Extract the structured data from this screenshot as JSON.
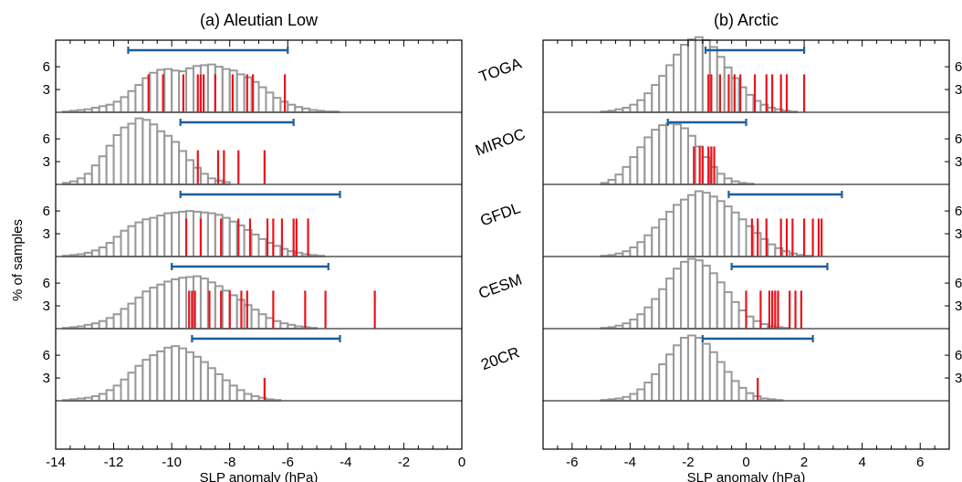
{
  "figure": {
    "ylabel": "% of samples",
    "models": [
      "TOGA",
      "MIROC",
      "GFDL",
      "CESM",
      "20CR"
    ],
    "colors": {
      "histogram": "#999999",
      "members": "#e8141b",
      "range": "#1b5e9c",
      "axis": "#000000"
    }
  },
  "chart_data": [
    {
      "type": "bar",
      "title": "(a) Aleutian Low",
      "xlabel": "SLP anomaly (hPa)",
      "ylabel": "% of samples",
      "xlim": [
        -14,
        0
      ],
      "xticks": [
        "-14",
        "-12",
        "-10",
        "-8",
        "-6",
        "-4",
        "-2",
        "0"
      ],
      "ylim": [
        0,
        9.5
      ],
      "yticks": [
        "6",
        "3"
      ],
      "bin_start": -13.75,
      "bin_width": 0.25,
      "panels": [
        {
          "model": "TOGA",
          "hist": [
            0.1,
            0.2,
            0.3,
            0.4,
            0.6,
            0.8,
            1.0,
            1.4,
            2.0,
            2.8,
            3.6,
            4.5,
            5.2,
            5.6,
            5.7,
            5.5,
            5.4,
            5.8,
            6.1,
            6.2,
            6.3,
            6.0,
            5.7,
            5.5,
            5.0,
            4.6,
            4.0,
            3.3,
            2.6,
            1.9,
            1.4,
            1.0,
            0.7,
            0.5,
            0.3,
            0.2,
            0.1,
            0.1
          ],
          "members": [
            -10.8,
            -10.3,
            -9.6,
            -9.1,
            -9.0,
            -8.9,
            -8.5,
            -7.9,
            -7.4,
            -7.2,
            -6.1
          ],
          "member_values": [
            5,
            5,
            5,
            5,
            5,
            5,
            5,
            5,
            5,
            5,
            5
          ],
          "range": [
            -11.5,
            -6.0
          ]
        },
        {
          "model": "MIROC",
          "hist": [
            0.2,
            0.4,
            0.8,
            1.4,
            2.5,
            3.7,
            5.1,
            6.5,
            7.5,
            8.0,
            8.7,
            8.5,
            7.9,
            7.0,
            6.4,
            5.6,
            4.4,
            3.2,
            2.2,
            1.4,
            0.8,
            0.5,
            0.3
          ],
          "members": [
            -9.1,
            -8.4,
            -8.2,
            -7.7,
            -6.8
          ],
          "member_values": [
            4.5,
            4.5,
            4.5,
            4.5,
            4.5
          ],
          "range": [
            -9.7,
            -5.8
          ]
        },
        {
          "model": "GFDL",
          "hist": [
            0.1,
            0.2,
            0.3,
            0.5,
            0.8,
            1.2,
            1.8,
            2.6,
            3.4,
            4.0,
            4.5,
            4.9,
            5.1,
            5.4,
            5.7,
            5.8,
            5.9,
            6.0,
            5.9,
            5.8,
            5.7,
            5.5,
            5.1,
            4.6,
            4.1,
            3.5,
            2.9,
            2.3,
            1.8,
            1.4,
            1.0,
            0.7,
            0.5,
            0.3,
            0.2,
            0.1
          ],
          "members": [
            -9.5,
            -9.0,
            -8.3,
            -7.7,
            -7.3,
            -6.7,
            -6.5,
            -6.2,
            -5.8,
            -5.7,
            -5.3
          ],
          "member_values": [
            5,
            5,
            5,
            5,
            5,
            5,
            5,
            5,
            5,
            5,
            5
          ],
          "range": [
            -9.7,
            -4.2
          ]
        },
        {
          "model": "CESM",
          "hist": [
            0.1,
            0.2,
            0.3,
            0.5,
            0.7,
            1.0,
            1.4,
            1.9,
            2.6,
            3.3,
            4.1,
            4.9,
            5.4,
            5.8,
            6.2,
            6.5,
            6.7,
            6.8,
            6.9,
            6.6,
            6.1,
            5.6,
            5.0,
            4.4,
            3.8,
            3.1,
            2.5,
            1.9,
            1.4,
            1.0,
            0.7,
            0.5,
            0.3,
            0.2,
            0.1
          ],
          "members": [
            -9.4,
            -9.3,
            -9.2,
            -8.7,
            -8.3,
            -8.0,
            -7.6,
            -7.4,
            -6.5,
            -5.4,
            -4.7,
            -3.0
          ],
          "member_values": [
            5,
            5,
            5,
            5,
            5,
            5,
            5,
            5,
            5,
            5,
            5,
            5
          ],
          "range": [
            -10.0,
            -4.6
          ]
        },
        {
          "model": "20CR",
          "hist": [
            0.1,
            0.2,
            0.3,
            0.4,
            0.6,
            0.9,
            1.4,
            2.0,
            2.8,
            3.7,
            4.6,
            5.4,
            6.0,
            6.5,
            7.0,
            7.2,
            6.9,
            6.4,
            5.8,
            5.1,
            4.3,
            3.5,
            2.7,
            2.0,
            1.4,
            0.9,
            0.6,
            0.4,
            0.2,
            0.1
          ],
          "members": [
            -6.8
          ],
          "member_values": [
            3
          ],
          "range": [
            -9.3,
            -4.2
          ]
        }
      ]
    },
    {
      "type": "bar",
      "title": "(b) Arctic",
      "xlabel": "SLP anomaly (hPa)",
      "ylabel": "% of samples",
      "xlim": [
        -7,
        7
      ],
      "xticks": [
        "-6",
        "-4",
        "-2",
        "0",
        "2",
        "4",
        "6"
      ],
      "ylim": [
        0,
        9.5
      ],
      "yticks": [
        "6",
        "3"
      ],
      "bin_start": -5,
      "bin_width": 0.25,
      "panels": [
        {
          "model": "TOGA",
          "hist": [
            0.1,
            0.2,
            0.4,
            0.6,
            1.0,
            1.6,
            2.5,
            3.6,
            4.8,
            6.2,
            7.6,
            8.9,
            9.6,
            9.9,
            9.5,
            8.6,
            7.3,
            5.9,
            4.5,
            3.3,
            2.3,
            1.5,
            1.0,
            0.6,
            0.4,
            0.2,
            0.1
          ],
          "members": [
            -1.3,
            -1.2,
            -0.9,
            -0.6,
            -0.4,
            -0.2,
            0.3,
            0.7,
            0.9,
            1.2,
            1.4,
            2.0
          ],
          "member_values": [
            5,
            5,
            5,
            5,
            5,
            5,
            5,
            5,
            5,
            5,
            5,
            5
          ],
          "range": [
            -1.4,
            2.0
          ]
        },
        {
          "model": "MIROC",
          "hist": [
            0.2,
            0.6,
            1.3,
            2.3,
            3.6,
            4.9,
            6.2,
            7.2,
            7.8,
            8.0,
            7.9,
            7.4,
            6.4,
            5.0,
            3.6,
            2.3,
            1.4,
            0.8,
            0.4,
            0.2,
            0.1
          ],
          "members": [
            -1.8,
            -1.6,
            -1.5,
            -1.3,
            -1.2,
            -1.1
          ],
          "member_values": [
            5,
            5,
            5,
            5,
            5,
            5
          ],
          "range": [
            -2.7,
            0.0
          ]
        },
        {
          "model": "GFDL",
          "hist": [
            0.1,
            0.2,
            0.4,
            0.7,
            1.2,
            1.9,
            2.8,
            3.8,
            4.9,
            5.9,
            6.8,
            7.5,
            8.1,
            8.6,
            8.4,
            7.9,
            7.3,
            6.6,
            5.8,
            4.9,
            4.0,
            3.1,
            2.3,
            1.6,
            1.1,
            0.7,
            0.4,
            0.2,
            0.1
          ],
          "members": [
            0.2,
            0.4,
            0.7,
            1.2,
            1.4,
            1.6,
            2.0,
            2.3,
            2.5,
            2.6
          ],
          "member_values": [
            5,
            5,
            5,
            5,
            5,
            5,
            5,
            5,
            5,
            5
          ],
          "range": [
            -0.6,
            3.3
          ]
        },
        {
          "model": "CESM",
          "hist": [
            0.1,
            0.2,
            0.4,
            0.7,
            1.2,
            1.9,
            2.8,
            3.9,
            5.2,
            6.6,
            7.9,
            8.8,
            9.2,
            9.0,
            8.3,
            7.3,
            6.1,
            4.8,
            3.5,
            2.4,
            1.6,
            1.0,
            0.6,
            0.3,
            0.2,
            0.1
          ],
          "members": [
            0.0,
            0.5,
            0.8,
            0.9,
            1.0,
            1.1,
            1.5,
            1.7,
            1.9
          ],
          "member_values": [
            5,
            5,
            5,
            5,
            5,
            5,
            5,
            5,
            5
          ],
          "range": [
            -0.5,
            2.8
          ]
        },
        {
          "model": "20CR",
          "hist": [
            0.1,
            0.2,
            0.3,
            0.5,
            0.9,
            1.5,
            2.4,
            3.5,
            4.8,
            6.1,
            7.3,
            8.3,
            8.6,
            8.3,
            7.5,
            6.4,
            5.1,
            3.8,
            2.6,
            1.7,
            1.0,
            0.6,
            0.3,
            0.2,
            0.1
          ],
          "members": [
            0.4
          ],
          "member_values": [
            3
          ],
          "range": [
            -1.5,
            2.3
          ]
        }
      ]
    }
  ]
}
